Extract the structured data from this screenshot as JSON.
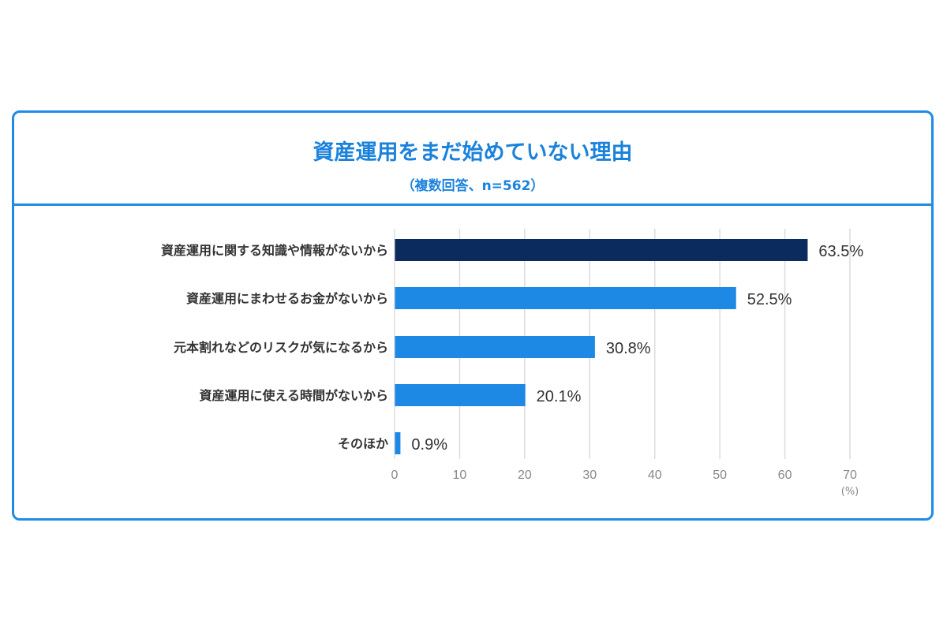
{
  "chart_data": {
    "type": "bar",
    "orientation": "horizontal",
    "title": "資産運用をまだ始めていない理由",
    "subtitle": "（複数回答、n=562）",
    "categories": [
      "資産運用に関する知識や情報がないから",
      "資産運用にまわせるお金がないから",
      "元本割れなどのリスクが気になるから",
      "資産運用に使える時間がないから",
      "そのほか"
    ],
    "values": [
      63.5,
      52.5,
      30.8,
      20.1,
      0.9
    ],
    "data_labels": [
      "63.5%",
      "52.5%",
      "30.8%",
      "20.1%",
      "0.9%"
    ],
    "xlim": [
      0,
      70
    ],
    "xticks": [
      "0",
      "10",
      "20",
      "30",
      "40",
      "50",
      "60",
      "70"
    ],
    "xunit": "(%)",
    "grid": "vertical",
    "colors": {
      "highlight": "#0b2a5e",
      "bar": "#1e88e5",
      "frame": "#1f8be3"
    }
  }
}
